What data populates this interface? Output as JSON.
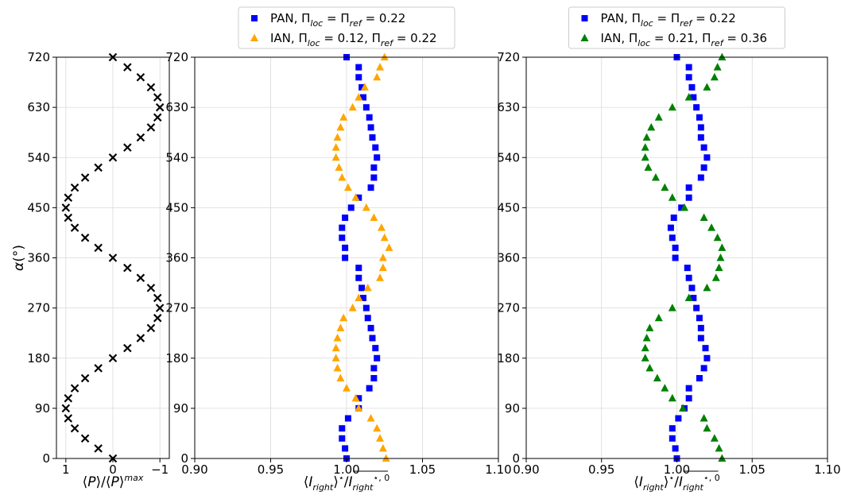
{
  "chart_data": [
    {
      "type": "scatter",
      "panel": "left",
      "xlabel": "⟨P⟩/⟨P⟩^max",
      "ylabel": "α(°)",
      "xlim": [
        1.2,
        -1.2
      ],
      "ylim": [
        0,
        720
      ],
      "xticks": [
        1,
        0,
        -1
      ],
      "xtick_labels": [
        "1",
        "0",
        "−1"
      ],
      "yticks": [
        0,
        90,
        180,
        270,
        360,
        450,
        540,
        630,
        720
      ],
      "grid": true,
      "series": [
        {
          "marker": "x",
          "color": "#000000",
          "x": [
            0.0,
            0.31,
            0.59,
            0.81,
            0.95,
            1.0,
            0.95,
            0.81,
            0.59,
            0.31,
            0.0,
            -0.31,
            -0.59,
            -0.81,
            -0.95,
            -1.0,
            -0.95,
            -0.81,
            -0.59,
            -0.31,
            0.0,
            0.31,
            0.59,
            0.81,
            0.95,
            1.0,
            0.95,
            0.81,
            0.59,
            0.31,
            0.0,
            -0.31,
            -0.59,
            -0.81,
            -0.95,
            -1.0,
            -0.95,
            -0.81,
            -0.59,
            -0.31,
            0.0
          ],
          "y": [
            0,
            18,
            36,
            54,
            72,
            90,
            108,
            126,
            144,
            162,
            180,
            198,
            216,
            234,
            252,
            270,
            288,
            306,
            324,
            342,
            360,
            378,
            396,
            414,
            432,
            450,
            468,
            486,
            504,
            522,
            540,
            558,
            576,
            594,
            612,
            630,
            648,
            666,
            684,
            702,
            720
          ]
        }
      ]
    },
    {
      "type": "scatter",
      "panel": "middle",
      "xlabel": "⟨I_right⟩*/I_right*,0",
      "ylabel": "",
      "xlim": [
        0.9,
        1.1
      ],
      "ylim": [
        0,
        720
      ],
      "xticks": [
        0.9,
        0.95,
        1.0,
        1.05,
        1.1
      ],
      "xtick_labels": [
        "0.90",
        "0.95",
        "1.00",
        "1.05",
        "1.10"
      ],
      "yticks": [
        0,
        90,
        180,
        270,
        360,
        450,
        540,
        630,
        720
      ],
      "grid": true,
      "legend": "top-center",
      "series": [
        {
          "name": "PAN, Π_loc = Π_ref = 0.22",
          "marker": "square",
          "color": "#0000ff",
          "x": [
            1.0,
            0.999,
            0.997,
            0.997,
            1.001,
            1.008,
            1.008,
            1.015,
            1.018,
            1.018,
            1.02,
            1.019,
            1.017,
            1.016,
            1.014,
            1.013,
            1.011,
            1.01,
            1.008,
            1.008,
            0.999,
            0.999,
            0.997,
            0.997,
            0.999,
            1.003,
            1.008,
            1.016,
            1.018,
            1.018,
            1.02,
            1.019,
            1.017,
            1.016,
            1.015,
            1.013,
            1.011,
            1.01,
            1.008,
            1.008,
            1.0
          ],
          "y": [
            0,
            18,
            36,
            54,
            72,
            90,
            108,
            126,
            144,
            162,
            180,
            198,
            216,
            234,
            252,
            270,
            288,
            306,
            324,
            342,
            360,
            378,
            396,
            414,
            432,
            450,
            468,
            486,
            504,
            522,
            540,
            558,
            576,
            594,
            612,
            630,
            648,
            666,
            684,
            702,
            720
          ]
        },
        {
          "name": "IAN, Π_loc = 0.12, Π_ref = 0.22",
          "marker": "triangle",
          "color": "#ffa500",
          "x": [
            1.026,
            1.024,
            1.022,
            1.02,
            1.016,
            1.008,
            1.006,
            1.0,
            0.996,
            0.994,
            0.993,
            0.993,
            0.994,
            0.996,
            0.998,
            1.004,
            1.008,
            1.014,
            1.022,
            1.024,
            1.024,
            1.028,
            1.025,
            1.023,
            1.018,
            1.013,
            1.006,
            1.001,
            0.997,
            0.995,
            0.993,
            0.993,
            0.994,
            0.996,
            0.998,
            1.004,
            1.008,
            1.012,
            1.02,
            1.022,
            1.025
          ],
          "y": [
            0,
            18,
            36,
            54,
            72,
            90,
            108,
            126,
            144,
            162,
            180,
            198,
            216,
            234,
            252,
            270,
            288,
            306,
            324,
            342,
            360,
            378,
            396,
            414,
            432,
            450,
            468,
            486,
            504,
            522,
            540,
            558,
            576,
            594,
            612,
            630,
            648,
            666,
            684,
            702,
            720
          ]
        }
      ]
    },
    {
      "type": "scatter",
      "panel": "right",
      "xlabel": "⟨I_right⟩*/I_right*,0",
      "ylabel": "",
      "xlim": [
        0.9,
        1.1
      ],
      "ylim": [
        0,
        720
      ],
      "xticks": [
        0.9,
        0.95,
        1.0,
        1.05,
        1.1
      ],
      "xtick_labels": [
        "0.90",
        "0.95",
        "1.00",
        "1.05",
        "1.10"
      ],
      "yticks": [
        0,
        90,
        180,
        270,
        360,
        450,
        540,
        630,
        720
      ],
      "grid": true,
      "legend": "top-center",
      "series": [
        {
          "name": "PAN, Π_loc = Π_ref = 0.22",
          "marker": "square",
          "color": "#0000ff",
          "x": [
            1.0,
            0.999,
            0.997,
            0.997,
            1.001,
            1.005,
            1.008,
            1.008,
            1.015,
            1.018,
            1.02,
            1.019,
            1.016,
            1.016,
            1.015,
            1.013,
            1.011,
            1.01,
            1.008,
            1.007,
            0.999,
            0.999,
            0.997,
            0.996,
            0.998,
            1.003,
            1.008,
            1.008,
            1.016,
            1.018,
            1.02,
            1.018,
            1.016,
            1.016,
            1.015,
            1.013,
            1.011,
            1.01,
            1.008,
            1.008,
            1.0
          ],
          "y": [
            0,
            18,
            36,
            54,
            72,
            90,
            108,
            126,
            144,
            162,
            180,
            198,
            216,
            234,
            252,
            270,
            288,
            306,
            324,
            342,
            360,
            378,
            396,
            414,
            432,
            450,
            468,
            486,
            504,
            522,
            540,
            558,
            576,
            594,
            612,
            630,
            648,
            666,
            684,
            702,
            720
          ]
        },
        {
          "name": "IAN, Π_loc = 0.21, Π_ref = 0.36",
          "marker": "triangle",
          "color": "#008000",
          "x": [
            1.03,
            1.028,
            1.025,
            1.02,
            1.018,
            1.004,
            0.997,
            0.992,
            0.987,
            0.982,
            0.979,
            0.979,
            0.98,
            0.982,
            0.988,
            0.997,
            1.008,
            1.02,
            1.026,
            1.028,
            1.029,
            1.03,
            1.027,
            1.023,
            1.018,
            1.005,
            0.997,
            0.992,
            0.986,
            0.981,
            0.979,
            0.979,
            0.98,
            0.983,
            0.988,
            0.997,
            1.008,
            1.02,
            1.025,
            1.027,
            1.03
          ],
          "y": [
            0,
            18,
            36,
            54,
            72,
            90,
            108,
            126,
            144,
            162,
            180,
            198,
            216,
            234,
            252,
            270,
            288,
            306,
            324,
            342,
            360,
            378,
            396,
            414,
            432,
            450,
            468,
            486,
            504,
            522,
            540,
            558,
            576,
            594,
            612,
            630,
            648,
            666,
            684,
            702,
            720
          ]
        }
      ]
    }
  ]
}
